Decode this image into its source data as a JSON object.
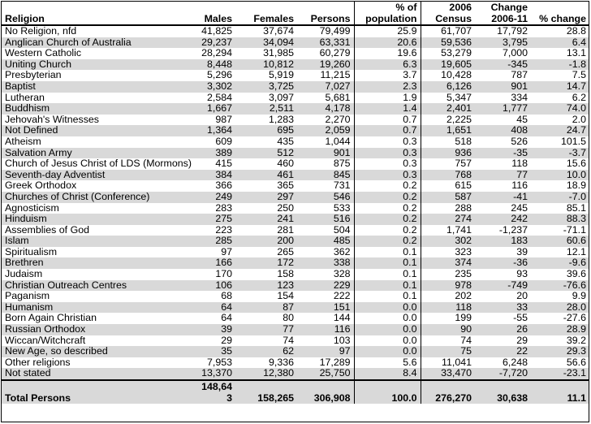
{
  "headers": [
    "Religion",
    "Males",
    "Females",
    "Persons",
    "% of population",
    "2006 Census",
    "Change 2006-11",
    "% change"
  ],
  "rows": [
    [
      "No Religion, nfd",
      "41,825",
      "37,674",
      "79,499",
      "25.9",
      "61,707",
      "17,792",
      "28.8"
    ],
    [
      "Anglican Church of Australia",
      "29,237",
      "34,094",
      "63,331",
      "20.6",
      "59,536",
      "3,795",
      "6.4"
    ],
    [
      "Western Catholic",
      "28,294",
      "31,985",
      "60,279",
      "19.6",
      "53,279",
      "7,000",
      "13.1"
    ],
    [
      "Uniting Church",
      "8,448",
      "10,812",
      "19,260",
      "6.3",
      "19,605",
      "-345",
      "-1.8"
    ],
    [
      "Presbyterian",
      "5,296",
      "5,919",
      "11,215",
      "3.7",
      "10,428",
      "787",
      "7.5"
    ],
    [
      "Baptist",
      "3,302",
      "3,725",
      "7,027",
      "2.3",
      "6,126",
      "901",
      "14.7"
    ],
    [
      "Lutheran",
      "2,584",
      "3,097",
      "5,681",
      "1.9",
      "5,347",
      "334",
      "6.2"
    ],
    [
      "Buddhism",
      "1,667",
      "2,511",
      "4,178",
      "1.4",
      "2,401",
      "1,777",
      "74.0"
    ],
    [
      "Jehovah's Witnesses",
      "987",
      "1,283",
      "2,270",
      "0.7",
      "2,225",
      "45",
      "2.0"
    ],
    [
      "Not Defined",
      "1,364",
      "695",
      "2,059",
      "0.7",
      "1,651",
      "408",
      "24.7"
    ],
    [
      "Atheism",
      "609",
      "435",
      "1,044",
      "0.3",
      "518",
      "526",
      "101.5"
    ],
    [
      "Salvation Army",
      "389",
      "512",
      "901",
      "0.3",
      "936",
      "-35",
      "-3.7"
    ],
    [
      "Church of Jesus Christ of LDS (Mormons)",
      "415",
      "460",
      "875",
      "0.3",
      "757",
      "118",
      "15.6"
    ],
    [
      "Seventh-day Adventist",
      "384",
      "461",
      "845",
      "0.3",
      "768",
      "77",
      "10.0"
    ],
    [
      "Greek Orthodox",
      "366",
      "365",
      "731",
      "0.2",
      "615",
      "116",
      "18.9"
    ],
    [
      "Churches of Christ (Conference)",
      "249",
      "297",
      "546",
      "0.2",
      "587",
      "-41",
      "-7.0"
    ],
    [
      "Agnosticism",
      "283",
      "250",
      "533",
      "0.2",
      "288",
      "245",
      "85.1"
    ],
    [
      "Hinduism",
      "275",
      "241",
      "516",
      "0.2",
      "274",
      "242",
      "88.3"
    ],
    [
      "Assemblies of God",
      "223",
      "281",
      "504",
      "0.2",
      "1,741",
      "-1,237",
      "-71.1"
    ],
    [
      "Islam",
      "285",
      "200",
      "485",
      "0.2",
      "302",
      "183",
      "60.6"
    ],
    [
      "Spiritualism",
      "97",
      "265",
      "362",
      "0.1",
      "323",
      "39",
      "12.1"
    ],
    [
      "Brethren",
      "166",
      "172",
      "338",
      "0.1",
      "374",
      "-36",
      "-9.6"
    ],
    [
      "Judaism",
      "170",
      "158",
      "328",
      "0.1",
      "235",
      "93",
      "39.6"
    ],
    [
      "Christian Outreach Centres",
      "106",
      "123",
      "229",
      "0.1",
      "978",
      "-749",
      "-76.6"
    ],
    [
      "Paganism",
      "68",
      "154",
      "222",
      "0.1",
      "202",
      "20",
      "9.9"
    ],
    [
      "Humanism",
      "64",
      "87",
      "151",
      "0.0",
      "118",
      "33",
      "28.0"
    ],
    [
      "Born Again Christian",
      "64",
      "80",
      "144",
      "0.0",
      "199",
      "-55",
      "-27.6"
    ],
    [
      "Russian Orthodox",
      "39",
      "77",
      "116",
      "0.0",
      "90",
      "26",
      "28.9"
    ],
    [
      "Wiccan/Witchcraft",
      "29",
      "74",
      "103",
      "0.0",
      "74",
      "29",
      "39.2"
    ],
    [
      "New Age, so described",
      "35",
      "62",
      "97",
      "0.0",
      "75",
      "22",
      "29.3"
    ],
    [
      "Other religions",
      "7,953",
      "9,336",
      "17,289",
      "5.6",
      "11,041",
      "6,248",
      "56.6"
    ],
    [
      "Not stated",
      "13,370",
      "12,380",
      "25,750",
      "8.4",
      "33,470",
      "-7,720",
      "-23.1"
    ]
  ],
  "total": [
    "Total  Persons",
    "148,643",
    "158,265",
    "306,908",
    "100.0",
    "276,270",
    "30,638",
    "11.1"
  ]
}
